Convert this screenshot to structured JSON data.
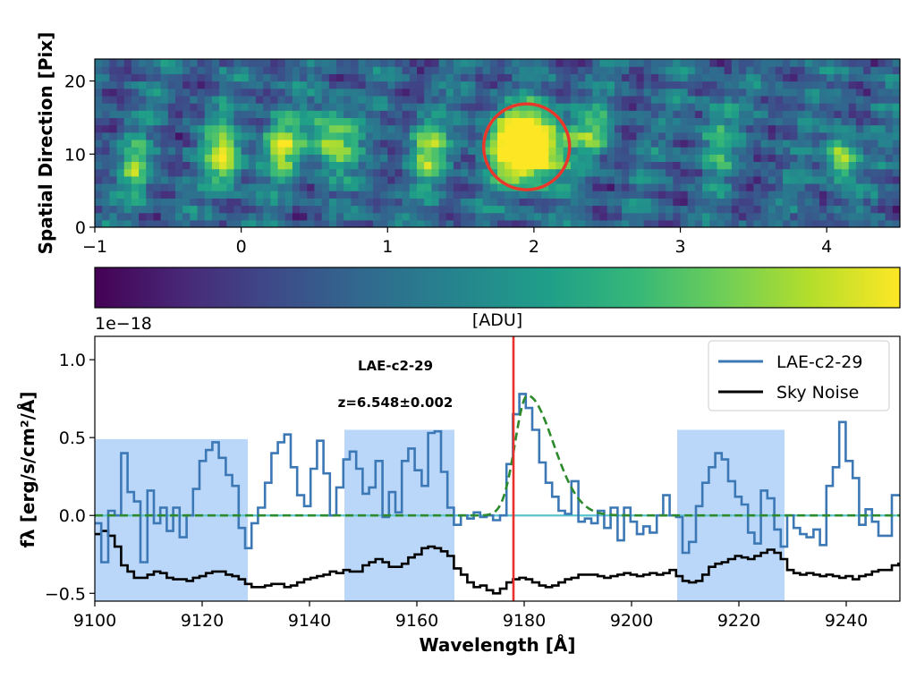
{
  "chart_data": [
    {
      "type": "heatmap",
      "ylabel": "Spatial Direction [Pix]",
      "xlim": [
        -1,
        4.5
      ],
      "ylim": [
        0,
        23
      ],
      "xticks": [
        "−1",
        "0",
        "1",
        "2",
        "3",
        "4"
      ],
      "xtick_values": [
        -1,
        0,
        1,
        2,
        3,
        4
      ],
      "yticks": [
        "0",
        "10",
        "20"
      ],
      "ytick_values": [
        0,
        10,
        20
      ],
      "colormap": "viridis",
      "highlight": {
        "shape": "circle",
        "x": 1.95,
        "y": 11,
        "color": "#e8382c"
      }
    },
    {
      "type": "colorbar",
      "label": "[ADU]",
      "colors": [
        "#440154",
        "#482878",
        "#3e4a89",
        "#31688e",
        "#26828e",
        "#1f9e89",
        "#35b779",
        "#6ece58",
        "#b5de2b",
        "#fde725"
      ]
    },
    {
      "type": "line",
      "title": "LAE-c2-29",
      "annotation": "z=6.548±0.002",
      "xlabel": "Wavelength [Å]",
      "ylabel": "fλ [erg/s/cm²/Å]",
      "exponent_label": "1e−18",
      "xlim": [
        9100,
        9250
      ],
      "ylim": [
        -0.55,
        1.15
      ],
      "xticks": [
        "9100",
        "9120",
        "9140",
        "9160",
        "9180",
        "9200",
        "9220",
        "9240"
      ],
      "xtick_values": [
        9100,
        9120,
        9140,
        9160,
        9180,
        9200,
        9220,
        9240
      ],
      "yticks": [
        "−0.5",
        "0.0",
        "0.5",
        "1.0"
      ],
      "ytick_values": [
        -0.5,
        0.0,
        0.5,
        1.0
      ],
      "legend": [
        "LAE-c2-29",
        "Sky Noise"
      ],
      "legend_position": "upper-right",
      "vline": {
        "x": 9178,
        "color": "#e8312a"
      },
      "hline": {
        "y": 0.0,
        "color": "#5bc3cf"
      },
      "shaded_regions": [
        {
          "x0": 9100,
          "x1": 9128.5,
          "y1": 0.49
        },
        {
          "x0": 9146.5,
          "x1": 9167,
          "y1": 0.55
        },
        {
          "x0": 9208.5,
          "x1": 9228.5,
          "y1": 0.55
        }
      ],
      "series": [
        {
          "name": "LAE-c2-29",
          "style": "steps",
          "color": "#3b78b5",
          "x": [
            9100,
            9101.2,
            9102.5,
            9103.7,
            9104.9,
            9106.1,
            9107.3,
            9108.5,
            9109.8,
            9111,
            9112.2,
            9113.4,
            9114.6,
            9115.8,
            9117.1,
            9118.3,
            9119.5,
            9120.7,
            9121.9,
            9123.1,
            9124.4,
            9125.6,
            9126.8,
            9128,
            9129.2,
            9130.4,
            9131.7,
            9132.9,
            9134.1,
            9135.3,
            9136.5,
            9137.7,
            9139,
            9140.2,
            9141.4,
            9142.6,
            9143.8,
            9145,
            9146.3,
            9147.5,
            9148.7,
            9149.9,
            9151.1,
            9152.3,
            9153.6,
            9154.8,
            9156,
            9157.2,
            9158.4,
            9159.6,
            9160.9,
            9162.1,
            9163.3,
            9164.5,
            9165.7,
            9166.9,
            9168.2,
            9169.4,
            9170.6,
            9171.8,
            9173,
            9174.2,
            9175.5,
            9176.7,
            9177.9,
            9179.1,
            9180.3,
            9181.5,
            9182.8,
            9184,
            9185.2,
            9186.4,
            9187.6,
            9188.8,
            9190.1,
            9191.3,
            9192.5,
            9193.7,
            9194.9,
            9196.1,
            9197.4,
            9198.6,
            9199.8,
            9201,
            9202.2,
            9203.4,
            9204.7,
            9205.9,
            9207.1,
            9208.3,
            9209.5,
            9210.7,
            9212,
            9213.2,
            9214.4,
            9215.6,
            9216.8,
            9218,
            9219.3,
            9220.5,
            9221.7,
            9222.9,
            9224.1,
            9225.3,
            9226.6,
            9227.8,
            9229,
            9230.2,
            9231.4,
            9232.6,
            9233.9,
            9235.1,
            9236.3,
            9237.5,
            9238.7,
            9239.9,
            9241.2,
            9242.4,
            9243.6,
            9244.8,
            9246,
            9247.2,
            9248.5,
            9249.7
          ],
          "y": [
            -0.05,
            -0.3,
            0.03,
            0.0,
            0.4,
            0.15,
            0.09,
            -0.3,
            0.16,
            -0.05,
            0.05,
            -0.1,
            0.05,
            -0.14,
            0.0,
            0.17,
            0.35,
            0.42,
            0.47,
            0.37,
            0.26,
            0.19,
            -0.08,
            -0.21,
            -0.05,
            0.05,
            0.21,
            0.4,
            0.47,
            0.52,
            0.31,
            0.13,
            0.06,
            0.3,
            0.48,
            0.27,
            0.0,
            0.18,
            0.36,
            0.41,
            0.3,
            0.14,
            0.18,
            0.35,
            -0.01,
            0.15,
            0.02,
            0.35,
            0.43,
            0.29,
            0.19,
            0.53,
            0.54,
            0.28,
            0.05,
            -0.06,
            0.0,
            -0.02,
            0.02,
            -0.01,
            0.0,
            -0.03,
            0.0,
            0.33,
            0.65,
            0.78,
            0.69,
            0.55,
            0.34,
            0.21,
            0.12,
            0.03,
            0.01,
            0.22,
            -0.04,
            -0.02,
            -0.05,
            0.03,
            -0.08,
            0.05,
            -0.16,
            0.05,
            -0.04,
            -0.12,
            -0.07,
            -0.11,
            0.0,
            0.13,
            0.0,
            -0.01,
            -0.24,
            -0.17,
            0.06,
            0.21,
            0.31,
            0.4,
            0.36,
            0.22,
            0.12,
            0.07,
            -0.11,
            -0.18,
            0.16,
            0.11,
            -0.09,
            -0.2,
            0.0,
            -0.08,
            -0.12,
            -0.14,
            -0.09,
            -0.19,
            0.19,
            0.31,
            0.6,
            0.35,
            0.24,
            -0.06,
            0.04,
            -0.04,
            -0.13,
            -0.13,
            0.13,
            0.13
          ]
        },
        {
          "name": "Sky Noise",
          "style": "steps",
          "color": "#000000",
          "x": [
            9100,
            9101.2,
            9102.5,
            9103.7,
            9104.9,
            9106.1,
            9107.3,
            9108.5,
            9109.8,
            9111,
            9112.2,
            9113.4,
            9114.6,
            9115.8,
            9117.1,
            9118.3,
            9119.5,
            9120.7,
            9121.9,
            9123.1,
            9124.4,
            9125.6,
            9126.8,
            9128,
            9129.2,
            9130.4,
            9131.7,
            9132.9,
            9134.1,
            9135.3,
            9136.5,
            9137.7,
            9139,
            9140.2,
            9141.4,
            9142.6,
            9143.8,
            9145,
            9146.3,
            9147.5,
            9148.7,
            9149.9,
            9151.1,
            9152.3,
            9153.6,
            9154.8,
            9156,
            9157.2,
            9158.4,
            9159.6,
            9160.9,
            9162.1,
            9163.3,
            9164.5,
            9165.7,
            9166.9,
            9168.2,
            9169.4,
            9170.6,
            9171.8,
            9173,
            9174.2,
            9175.5,
            9176.7,
            9177.9,
            9179.1,
            9180.3,
            9181.5,
            9182.8,
            9184,
            9185.2,
            9186.4,
            9187.6,
            9188.8,
            9190.1,
            9191.3,
            9192.5,
            9193.7,
            9194.9,
            9196.1,
            9197.4,
            9198.6,
            9199.8,
            9201,
            9202.2,
            9203.4,
            9204.7,
            9205.9,
            9207.1,
            9208.3,
            9209.5,
            9210.7,
            9212,
            9213.2,
            9214.4,
            9215.6,
            9216.8,
            9218,
            9219.3,
            9220.5,
            9221.7,
            9222.9,
            9224.1,
            9225.3,
            9226.6,
            9227.8,
            9229,
            9230.2,
            9231.4,
            9232.6,
            9233.9,
            9235.1,
            9236.3,
            9237.5,
            9238.7,
            9239.9,
            9241.2,
            9242.4,
            9243.6,
            9244.8,
            9246,
            9247.2,
            9248.5,
            9249.7
          ],
          "y": [
            -0.12,
            -0.1,
            -0.13,
            -0.2,
            -0.32,
            -0.36,
            -0.4,
            -0.4,
            -0.38,
            -0.36,
            -0.37,
            -0.4,
            -0.41,
            -0.41,
            -0.42,
            -0.4,
            -0.39,
            -0.37,
            -0.36,
            -0.36,
            -0.38,
            -0.39,
            -0.41,
            -0.44,
            -0.46,
            -0.46,
            -0.45,
            -0.44,
            -0.44,
            -0.46,
            -0.45,
            -0.43,
            -0.41,
            -0.4,
            -0.39,
            -0.38,
            -0.36,
            -0.37,
            -0.35,
            -0.36,
            -0.36,
            -0.32,
            -0.3,
            -0.28,
            -0.3,
            -0.33,
            -0.33,
            -0.31,
            -0.27,
            -0.25,
            -0.21,
            -0.2,
            -0.21,
            -0.23,
            -0.26,
            -0.34,
            -0.38,
            -0.43,
            -0.46,
            -0.45,
            -0.48,
            -0.5,
            -0.47,
            -0.43,
            -0.41,
            -0.4,
            -0.41,
            -0.43,
            -0.45,
            -0.46,
            -0.45,
            -0.43,
            -0.41,
            -0.4,
            -0.38,
            -0.38,
            -0.38,
            -0.39,
            -0.4,
            -0.39,
            -0.38,
            -0.37,
            -0.38,
            -0.39,
            -0.38,
            -0.37,
            -0.38,
            -0.37,
            -0.35,
            -0.39,
            -0.42,
            -0.43,
            -0.42,
            -0.38,
            -0.33,
            -0.31,
            -0.3,
            -0.28,
            -0.26,
            -0.27,
            -0.28,
            -0.26,
            -0.24,
            -0.22,
            -0.24,
            -0.28,
            -0.35,
            -0.37,
            -0.38,
            -0.37,
            -0.38,
            -0.39,
            -0.38,
            -0.39,
            -0.4,
            -0.39,
            -0.41,
            -0.39,
            -0.38,
            -0.36,
            -0.35,
            -0.35,
            -0.32,
            -0.31
          ]
        },
        {
          "name": "Gaussian fit",
          "style": "dashed",
          "color": "#2c8a2c",
          "center": 9180.6,
          "amplitude": 0.77,
          "sigma_left": 2.3,
          "sigma_right": 4.8,
          "baseline": 0.0
        }
      ]
    }
  ]
}
